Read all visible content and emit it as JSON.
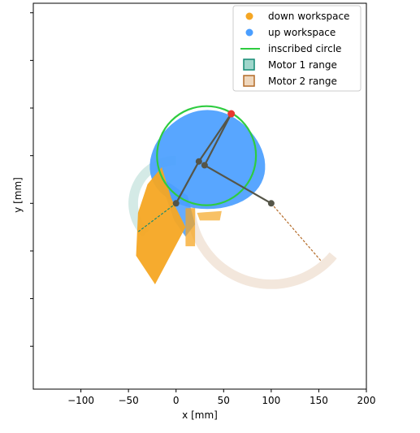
{
  "chart_data": {
    "type": "scatter",
    "xlabel": "x [mm]",
    "ylabel": "y [mm]",
    "xlim": [
      -150,
      200
    ],
    "ylim": [
      -195,
      210
    ],
    "xticks": [
      -100,
      -50,
      0,
      50,
      100,
      150,
      200
    ],
    "xtick_labels": [
      "−100",
      "−50",
      "0",
      "50",
      "100",
      "150",
      "200"
    ],
    "yticks": [
      -150,
      -100,
      -50,
      0,
      50,
      100,
      150,
      200
    ],
    "y_tick_labels_shown": false,
    "grid": false,
    "legend_position": "top-right",
    "legend": [
      {
        "label": "down workspace",
        "marker": "dot",
        "color": "#f5a623"
      },
      {
        "label": "up workspace",
        "marker": "dot",
        "color": "#4a9eff"
      },
      {
        "label": "inscribed circle",
        "marker": "line",
        "color": "#2ecc40"
      },
      {
        "label": "Motor 1 range",
        "marker": "square",
        "color": "#138a73"
      },
      {
        "label": "Motor 2 range",
        "marker": "square",
        "color": "#b46b28"
      }
    ],
    "motors": [
      {
        "name": "Motor 1",
        "position": [
          0,
          0
        ]
      },
      {
        "name": "Motor 2",
        "position": [
          100,
          0
        ]
      }
    ],
    "inscribed_circle": {
      "center": [
        32,
        50
      ],
      "radius": 52
    },
    "end_effector": [
      58,
      94
    ],
    "elbow_points": [
      [
        24,
        44
      ],
      [
        30,
        40
      ]
    ],
    "motor1_range": {
      "center": [
        0,
        0
      ],
      "r_inner": 40,
      "r_outer": 50,
      "theta_from": 90,
      "theta_to": 225,
      "color": "#138a73"
    },
    "motor2_range": {
      "center": [
        100,
        0
      ],
      "r_inner": 80,
      "r_outer": 90,
      "theta_from": 180,
      "theta_to": 320,
      "color": "#b46b28"
    },
    "motor1_dashed_end": [
      -40,
      -30
    ],
    "motor2_dashed_end": [
      152,
      -60
    ],
    "colors": {
      "down": "#f5a623",
      "up": "#4a9eff",
      "circle": "#2ecc40",
      "end_effector": "#e8392f",
      "link": "#555548"
    }
  }
}
